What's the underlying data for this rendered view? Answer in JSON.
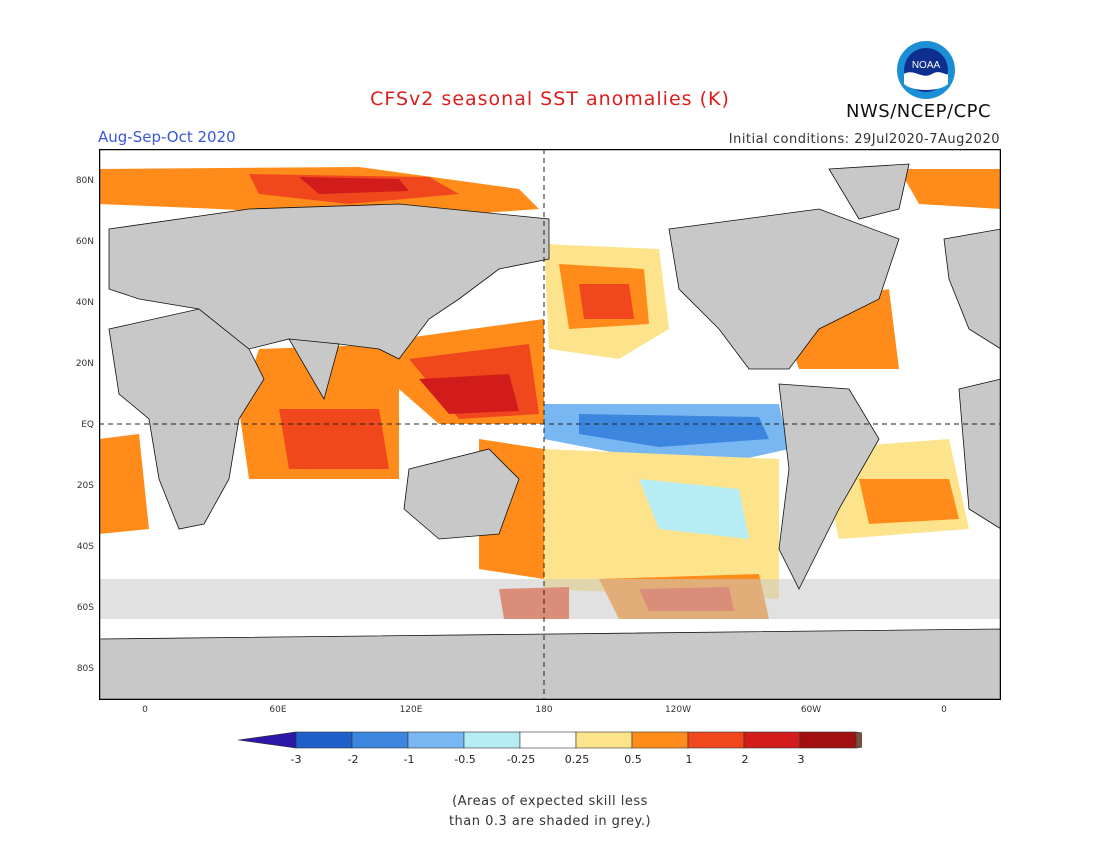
{
  "title": "CFSv2 seasonal SST anomalies (K)",
  "season": "Aug-Sep-Oct 2020",
  "initial_conditions": "Initial conditions: 29Jul2020-7Aug2020",
  "agency": "NWS/NCEP/CPC",
  "logo_text": "NOAA",
  "note_line1": "(Areas of expected skill less",
  "note_line2": "than 0.3 are shaded in grey.)",
  "lat_labels": [
    "80N",
    "60N",
    "40N",
    "20N",
    "EQ",
    "20S",
    "40S",
    "60S",
    "80S"
  ],
  "lon_labels": [
    "0",
    "60E",
    "120E",
    "180",
    "120W",
    "60W",
    "0"
  ],
  "colorbar": {
    "labels": [
      "-3",
      "-2",
      "-1",
      "-0.5",
      "-0.25",
      "0.25",
      "0.5",
      "1",
      "2",
      "3"
    ],
    "colors": [
      "#2d17a8",
      "#1f5fc8",
      "#3d86e0",
      "#78b7f2",
      "#b6ecf4",
      "#ffffff",
      "#fde48c",
      "#ff8c1a",
      "#f0481c",
      "#d21c1c",
      "#a30f0f",
      "#7a4e3c"
    ]
  },
  "colors": {
    "land": "#c8c8c8",
    "ocean_neutral": "#ffffff",
    "title_red": "#dd1c1c",
    "season_blue": "#3b56d6"
  }
}
